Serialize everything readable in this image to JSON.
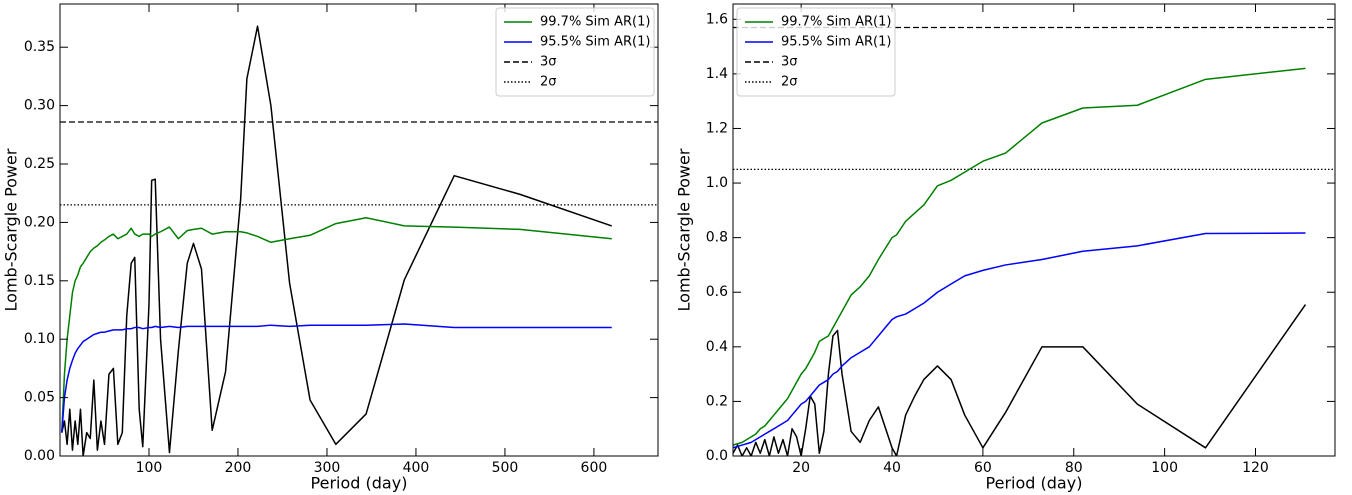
{
  "chart_data": [
    {
      "type": "line",
      "xlabel": "Period (day)",
      "ylabel": "Lomb-Scargle Power",
      "legend": "upper right",
      "xlim": [
        0,
        672
      ],
      "ylim": [
        0,
        0.387
      ],
      "xticks": [
        100,
        200,
        300,
        400,
        500,
        600
      ],
      "yticks": [
        {
          "value": 0,
          "label": "0.00"
        },
        {
          "value": 0.05,
          "label": "0.05"
        },
        {
          "value": 0.1,
          "label": "0.10"
        },
        {
          "value": 0.15,
          "label": "0.15"
        },
        {
          "value": 0.2,
          "label": "0.20"
        },
        {
          "value": 0.25,
          "label": "0.25"
        },
        {
          "value": 0.3,
          "label": "0.30"
        },
        {
          "value": 0.35,
          "label": "0.35"
        }
      ],
      "x": [
        2,
        5,
        8,
        11,
        14,
        17,
        20,
        23,
        26,
        30,
        34,
        38,
        42,
        46,
        50,
        55,
        60,
        65,
        70,
        75,
        80,
        84,
        89,
        93,
        100,
        103,
        107,
        113,
        123,
        133,
        143,
        150,
        159,
        171,
        186,
        203,
        210,
        222,
        237,
        258,
        281,
        310,
        344,
        387,
        443,
        517,
        620
      ],
      "series": [
        {
          "color": "#000000",
          "values": [
            0.02,
            0.03,
            0.01,
            0.04,
            0.005,
            0.03,
            0.01,
            0.04,
            0.0,
            0.02,
            0.015,
            0.065,
            0.005,
            0.03,
            0.01,
            0.07,
            0.075,
            0.01,
            0.02,
            0.12,
            0.165,
            0.17,
            0.04,
            0.008,
            0.13,
            0.236,
            0.237,
            0.1,
            0.003,
            0.09,
            0.165,
            0.182,
            0.16,
            0.022,
            0.072,
            0.22,
            0.323,
            0.368,
            0.3,
            0.148,
            0.048,
            0.01,
            0.036,
            0.151,
            0.24,
            0.224,
            0.197
          ]
        },
        {
          "name": "99.7% Sim AR(1)",
          "color": "#008000",
          "values": [
            0.02,
            0.07,
            0.1,
            0.12,
            0.14,
            0.15,
            0.155,
            0.162,
            0.165,
            0.17,
            0.175,
            0.178,
            0.18,
            0.183,
            0.185,
            0.188,
            0.19,
            0.186,
            0.188,
            0.19,
            0.195,
            0.19,
            0.188,
            0.19,
            0.19,
            0.188,
            0.19,
            0.192,
            0.196,
            0.186,
            0.193,
            0.194,
            0.195,
            0.19,
            0.192,
            0.192,
            0.191,
            0.188,
            0.183,
            0.186,
            0.189,
            0.199,
            0.204,
            0.197,
            0.196,
            0.194,
            0.186
          ]
        },
        {
          "name": "95.5% Sim AR(1)",
          "color": "#0000ff",
          "values": [
            0.02,
            0.05,
            0.065,
            0.075,
            0.082,
            0.088,
            0.092,
            0.095,
            0.098,
            0.1,
            0.102,
            0.104,
            0.105,
            0.106,
            0.106,
            0.107,
            0.108,
            0.108,
            0.108,
            0.109,
            0.109,
            0.11,
            0.11,
            0.109,
            0.11,
            0.11,
            0.111,
            0.11,
            0.111,
            0.11,
            0.111,
            0.111,
            0.111,
            0.111,
            0.111,
            0.111,
            0.111,
            0.111,
            0.112,
            0.111,
            0.112,
            0.112,
            0.112,
            0.113,
            0.11,
            0.11,
            0.11
          ]
        }
      ],
      "hlines": [
        {
          "name": "3σ",
          "value": 0.286,
          "color": "#000000",
          "style": "dashed"
        },
        {
          "name": "2σ",
          "value": 0.215,
          "color": "#000000",
          "style": "dotted"
        }
      ]
    },
    {
      "type": "line",
      "xlabel": "Period (day)",
      "ylabel": "Lomb-Scargle Power",
      "legend": "upper left",
      "xlim": [
        5,
        137.5
      ],
      "ylim": [
        0,
        1.656
      ],
      "xticks": [
        20,
        40,
        60,
        80,
        100,
        120
      ],
      "yticks": [
        {
          "value": 0,
          "label": "0.0"
        },
        0.2,
        0.4,
        0.6,
        0.8,
        {
          "value": 1,
          "label": "1.0"
        },
        1.2,
        1.4,
        1.6
      ],
      "x": [
        5,
        6,
        7,
        8,
        9,
        10,
        11,
        12,
        13,
        14,
        15,
        16,
        17,
        18,
        19,
        20,
        21,
        22,
        23,
        24,
        25,
        26,
        27,
        28,
        29,
        31,
        33,
        35,
        37,
        40,
        41,
        43,
        45,
        47,
        50,
        53,
        56,
        60,
        65,
        73,
        82,
        94,
        109,
        131
      ],
      "series": [
        {
          "color": "#000000",
          "values": [
            0.01,
            0.04,
            0.0,
            0.03,
            0.0,
            0.05,
            0.01,
            0.06,
            0.0,
            0.07,
            0.01,
            0.06,
            0.0,
            0.1,
            0.07,
            0.0,
            0.1,
            0.22,
            0.19,
            0.01,
            0.09,
            0.3,
            0.44,
            0.46,
            0.3,
            0.09,
            0.05,
            0.13,
            0.18,
            0.03,
            0.0,
            0.15,
            0.22,
            0.28,
            0.33,
            0.28,
            0.15,
            0.03,
            0.16,
            0.4,
            0.4,
            0.19,
            0.03,
            0.555
          ]
        },
        {
          "name": "99.7% Sim AR(1)",
          "color": "#008000",
          "values": [
            0.04,
            0.045,
            0.05,
            0.06,
            0.07,
            0.08,
            0.1,
            0.11,
            0.13,
            0.15,
            0.17,
            0.19,
            0.21,
            0.24,
            0.27,
            0.3,
            0.32,
            0.35,
            0.38,
            0.42,
            0.43,
            0.44,
            0.47,
            0.5,
            0.53,
            0.59,
            0.62,
            0.66,
            0.72,
            0.8,
            0.81,
            0.86,
            0.89,
            0.92,
            0.99,
            1.01,
            1.04,
            1.08,
            1.11,
            1.22,
            1.275,
            1.285,
            1.38,
            1.42
          ]
        },
        {
          "name": "95.5% Sim AR(1)",
          "color": "#0000ff",
          "values": [
            0.03,
            0.035,
            0.04,
            0.045,
            0.05,
            0.06,
            0.07,
            0.08,
            0.09,
            0.1,
            0.11,
            0.12,
            0.13,
            0.15,
            0.17,
            0.19,
            0.2,
            0.22,
            0.24,
            0.26,
            0.27,
            0.28,
            0.3,
            0.31,
            0.33,
            0.36,
            0.38,
            0.4,
            0.44,
            0.5,
            0.51,
            0.52,
            0.54,
            0.56,
            0.6,
            0.63,
            0.66,
            0.68,
            0.7,
            0.72,
            0.75,
            0.77,
            0.815,
            0.817
          ]
        }
      ],
      "hlines": [
        {
          "name": "3σ",
          "value": 1.57,
          "color": "#000000",
          "style": "dashed"
        },
        {
          "name": "2σ",
          "value": 1.05,
          "color": "#000000",
          "style": "dotted"
        }
      ]
    }
  ]
}
